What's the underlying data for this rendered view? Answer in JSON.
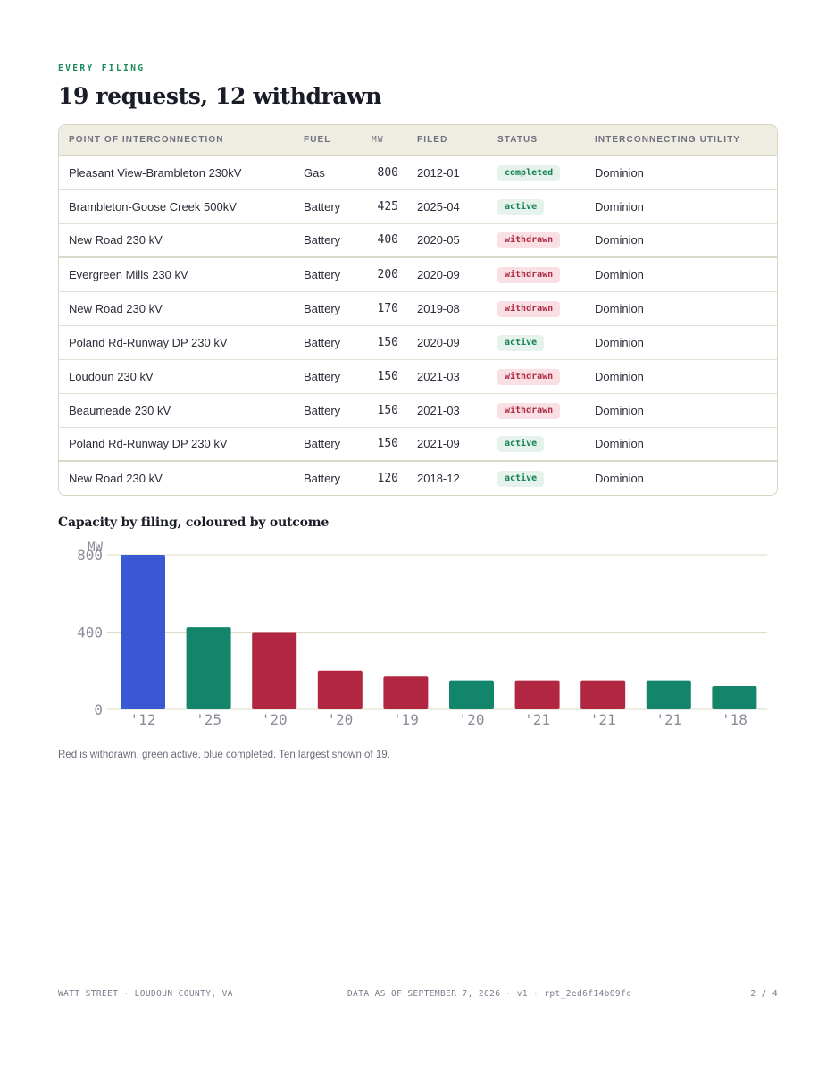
{
  "eyebrow": "EVERY FILING",
  "title": "19 requests, 12 withdrawn",
  "table": {
    "headers": [
      "POINT OF INTERCONNECTION",
      "FUEL",
      "MW",
      "FILED",
      "STATUS",
      "INTERCONNECTING UTILITY"
    ],
    "rows": [
      {
        "poi": "Pleasant View-Brambleton 230kV",
        "fuel": "Gas",
        "mw": "800",
        "filed": "2012-01",
        "status": "completed",
        "utility": "Dominion"
      },
      {
        "poi": "Brambleton-Goose Creek 500kV",
        "fuel": "Battery",
        "mw": "425",
        "filed": "2025-04",
        "status": "active",
        "utility": "Dominion"
      },
      {
        "poi": "New Road 230 kV",
        "fuel": "Battery",
        "mw": "400",
        "filed": "2020-05",
        "status": "withdrawn",
        "utility": "Dominion"
      },
      {
        "poi": "Evergreen Mills 230 kV",
        "fuel": "Battery",
        "mw": "200",
        "filed": "2020-09",
        "status": "withdrawn",
        "utility": "Dominion"
      },
      {
        "poi": "New Road 230 kV",
        "fuel": "Battery",
        "mw": "170",
        "filed": "2019-08",
        "status": "withdrawn",
        "utility": "Dominion"
      },
      {
        "poi": "Poland Rd-Runway DP 230 kV",
        "fuel": "Battery",
        "mw": "150",
        "filed": "2020-09",
        "status": "active",
        "utility": "Dominion"
      },
      {
        "poi": "Loudoun 230 kV",
        "fuel": "Battery",
        "mw": "150",
        "filed": "2021-03",
        "status": "withdrawn",
        "utility": "Dominion"
      },
      {
        "poi": "Beaumeade 230 kV",
        "fuel": "Battery",
        "mw": "150",
        "filed": "2021-03",
        "status": "withdrawn",
        "utility": "Dominion"
      },
      {
        "poi": "Poland Rd-Runway DP 230 kV",
        "fuel": "Battery",
        "mw": "150",
        "filed": "2021-09",
        "status": "active",
        "utility": "Dominion"
      },
      {
        "poi": "New Road 230 kV",
        "fuel": "Battery",
        "mw": "120",
        "filed": "2018-12",
        "status": "active",
        "utility": "Dominion"
      }
    ]
  },
  "chart_title": "Capacity by filing, coloured by outcome",
  "chart_data": {
    "type": "bar",
    "ylabel": "MW",
    "ylim": [
      0,
      800
    ],
    "yticks": [
      0,
      400,
      800
    ],
    "grid": true,
    "categories": [
      "'12",
      "'25",
      "'20",
      "'20",
      "'19",
      "'20",
      "'21",
      "'21",
      "'21",
      "'18"
    ],
    "values": [
      800,
      425,
      400,
      200,
      170,
      150,
      150,
      150,
      150,
      120
    ],
    "outcomes": [
      "completed",
      "active",
      "withdrawn",
      "withdrawn",
      "withdrawn",
      "active",
      "withdrawn",
      "withdrawn",
      "active",
      "active"
    ],
    "colors": {
      "completed": "#3a58d6",
      "active": "#13856a",
      "withdrawn": "#b12741"
    }
  },
  "caption": "Red is withdrawn, green active, blue completed. Ten largest shown of 19.",
  "footer": {
    "left": "WATT STREET · LOUDOUN COUNTY, VA",
    "mid": "DATA AS OF SEPTEMBER 7, 2026 · v1 · rpt_2ed6f14b09fc",
    "right": "2 / 4"
  }
}
